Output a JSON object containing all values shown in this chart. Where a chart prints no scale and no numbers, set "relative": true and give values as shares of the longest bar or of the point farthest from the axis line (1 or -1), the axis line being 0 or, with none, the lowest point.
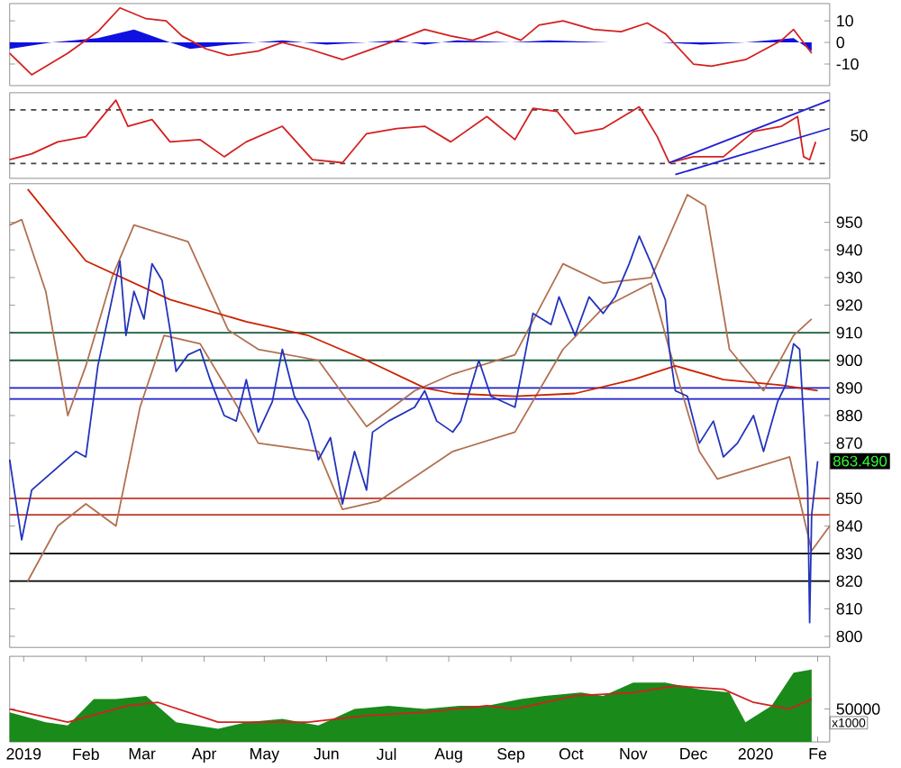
{
  "chart_data": [
    {
      "type": "line",
      "xlim": [
        "2018-12-25",
        "2020-02-07"
      ],
      "ylim": [
        -20,
        18
      ],
      "yticks": [
        10,
        0,
        -10
      ],
      "tick_labels": "y",
      "series": [
        {
          "type": "area",
          "color": "#1010e0",
          "x": [
            "2018-12-25",
            "2019-01-15",
            "2019-02-07",
            "2019-02-25",
            "2019-03-15",
            "2019-03-25",
            "2019-04-13",
            "2019-05-10",
            "2019-06-01",
            "2019-06-21",
            "2019-07-06",
            "2019-07-20",
            "2019-08-05",
            "2019-09-01",
            "2019-09-20",
            "2019-10-20",
            "2019-11-15",
            "2019-12-05",
            "2019-12-27",
            "2020-01-20",
            "2020-01-29"
          ],
          "values": [
            -3,
            0,
            2,
            6,
            0,
            -3,
            -1,
            1,
            -1,
            0,
            1,
            -1,
            1,
            0,
            1,
            0,
            0,
            -1,
            0,
            2,
            -4
          ]
        },
        {
          "type": "line",
          "color": "#d42020",
          "x": [
            "2018-12-25",
            "2019-01-05",
            "2019-01-23",
            "2019-02-07",
            "2019-02-18",
            "2019-03-03",
            "2019-03-13",
            "2019-03-21",
            "2019-04-02",
            "2019-04-13",
            "2019-04-28",
            "2019-05-10",
            "2019-05-23",
            "2019-06-09",
            "2019-06-21",
            "2019-07-06",
            "2019-07-20",
            "2019-08-02",
            "2019-08-13",
            "2019-08-25",
            "2019-09-06",
            "2019-09-15",
            "2019-09-27",
            "2019-10-12",
            "2019-10-26",
            "2019-11-08",
            "2019-11-17",
            "2019-12-01",
            "2019-12-10",
            "2019-12-27",
            "2020-01-14",
            "2020-01-20",
            "2020-01-29"
          ],
          "values": [
            -5,
            -15,
            -5,
            5,
            16,
            11,
            10,
            3,
            -3,
            -6,
            -4,
            0,
            -3,
            -8,
            -4,
            1,
            6,
            3,
            1,
            5,
            1,
            8,
            10,
            6,
            5,
            9,
            4,
            -10,
            -11,
            -8,
            1,
            6,
            -5
          ]
        }
      ]
    },
    {
      "type": "line",
      "xlim": [
        "2018-12-25",
        "2020-02-07"
      ],
      "relative": true,
      "tick_labels": false,
      "annotations": [
        "50"
      ],
      "ref_lines": [
        {
          "axis": "y",
          "value": 0.87,
          "color": "#444444",
          "line_style": "dashed"
        },
        {
          "axis": "y",
          "value": 0.15,
          "color": "#444444",
          "line_style": "dashed"
        }
      ],
      "series": [
        {
          "color": "#d42020",
          "x": [
            "2018-12-25",
            "2019-01-05",
            "2019-01-18",
            "2019-02-01",
            "2019-02-16",
            "2019-02-22",
            "2019-03-06",
            "2019-03-15",
            "2019-03-30",
            "2019-04-11",
            "2019-04-22",
            "2019-05-10",
            "2019-05-25",
            "2019-06-09",
            "2019-06-21",
            "2019-07-06",
            "2019-07-20",
            "2019-08-02",
            "2019-08-20",
            "2019-09-03",
            "2019-09-12",
            "2019-09-24",
            "2019-10-03",
            "2019-10-17",
            "2019-11-04",
            "2019-11-13",
            "2019-11-19",
            "2019-12-01",
            "2019-12-16",
            "2019-12-31",
            "2020-01-14",
            "2020-01-22",
            "2020-01-25",
            "2020-01-28",
            "2020-01-31"
          ],
          "values": [
            0.2,
            0.28,
            0.44,
            0.51,
            1,
            0.65,
            0.74,
            0.44,
            0.47,
            0.24,
            0.44,
            0.65,
            0.2,
            0.16,
            0.55,
            0.62,
            0.65,
            0.44,
            0.78,
            0.47,
            0.89,
            0.85,
            0.55,
            0.62,
            0.91,
            0.51,
            0.16,
            0.24,
            0.24,
            0.58,
            0.65,
            0.78,
            0.24,
            0.2,
            0.44
          ]
        },
        {
          "color": "#2020d0",
          "x": [
            "2019-11-22",
            "2020-02-07"
          ],
          "values": [
            0,
            0.62
          ]
        },
        {
          "color": "#2020d0",
          "x": [
            "2019-11-19",
            "2020-02-07"
          ],
          "values": [
            0.16,
            1
          ]
        }
      ]
    },
    {
      "type": "line",
      "xlim": [
        "2018-12-25",
        "2020-02-07"
      ],
      "ylim": [
        796,
        964
      ],
      "yticks": [
        800,
        810,
        820,
        830,
        840,
        850,
        870,
        880,
        890,
        900,
        910,
        920,
        930,
        940,
        950
      ],
      "tick_labels": "y",
      "ref_lines": [
        {
          "axis": "y",
          "value": 910,
          "color": "#1a5c3a"
        },
        {
          "axis": "y",
          "value": 900,
          "color": "#1a5c3a"
        },
        {
          "axis": "y",
          "value": 890,
          "color": "#1f1fd0"
        },
        {
          "axis": "y",
          "value": 886,
          "color": "#1f1fd0"
        },
        {
          "axis": "y",
          "value": 850,
          "color": "#c0392b"
        },
        {
          "axis": "y",
          "value": 844,
          "color": "#c0392b"
        },
        {
          "axis": "y",
          "value": 830,
          "color": "#000000"
        },
        {
          "axis": "y",
          "value": 820,
          "color": "#000000"
        }
      ],
      "series": [
        {
          "color": "#b07050",
          "x": [
            "2018-12-25",
            "2018-12-31",
            "2019-01-12",
            "2019-01-23",
            "2019-02-01",
            "2019-02-14",
            "2019-02-25",
            "2019-03-24",
            "2019-04-13",
            "2019-04-28",
            "2019-05-28",
            "2019-06-21",
            "2019-07-15",
            "2019-08-03",
            "2019-09-03",
            "2019-09-27",
            "2019-10-17",
            "2019-11-10",
            "2019-11-28",
            "2019-12-07",
            "2019-12-19",
            "2020-01-05",
            "2020-01-20",
            "2020-01-29"
          ],
          "values": [
            949,
            951,
            925,
            880,
            898,
            930,
            949,
            943,
            911,
            904,
            900,
            876,
            889,
            895,
            902,
            935,
            928,
            930,
            960,
            956,
            904,
            889,
            909,
            915
          ]
        },
        {
          "color": "#b07050",
          "x": [
            "2019-01-03",
            "2019-01-18",
            "2019-02-01",
            "2019-02-16",
            "2019-02-28",
            "2019-03-12",
            "2019-03-30",
            "2019-04-13",
            "2019-04-28",
            "2019-05-28",
            "2019-06-09",
            "2019-06-27",
            "2019-08-03",
            "2019-09-03",
            "2019-09-27",
            "2019-10-17",
            "2019-11-10",
            "2019-11-19",
            "2019-12-04",
            "2019-12-13",
            "2019-12-31",
            "2020-01-18",
            "2020-01-29",
            "2020-02-07"
          ],
          "values": [
            820,
            840,
            848,
            840,
            883,
            909,
            906,
            889,
            870,
            867,
            846,
            849,
            867,
            874,
            904,
            919,
            928,
            904,
            867,
            857,
            861,
            865,
            831,
            840
          ]
        },
        {
          "color": "#cc2200",
          "x": [
            "2019-01-03",
            "2019-02-01",
            "2019-03-15",
            "2019-04-22",
            "2019-05-23",
            "2019-06-21",
            "2019-07-20",
            "2019-08-03",
            "2019-09-03",
            "2019-10-03",
            "2019-11-01",
            "2019-11-22",
            "2019-12-16",
            "2020-01-14",
            "2020-02-01"
          ],
          "values": [
            962,
            936,
            922,
            914,
            909,
            900,
            890,
            888,
            887,
            888,
            893,
            898,
            893,
            891,
            889
          ]
        },
        {
          "color": "#2233bb",
          "x": [
            "2018-12-25",
            "2018-12-31",
            "2019-01-05",
            "2019-01-27",
            "2019-02-01",
            "2019-02-07",
            "2019-02-14",
            "2019-02-18",
            "2019-02-21",
            "2019-02-25",
            "2019-03-02",
            "2019-03-06",
            "2019-03-11",
            "2019-03-15",
            "2019-03-18",
            "2019-03-24",
            "2019-03-30",
            "2019-04-04",
            "2019-04-11",
            "2019-04-17",
            "2019-04-22",
            "2019-04-28",
            "2019-05-05",
            "2019-05-10",
            "2019-05-16",
            "2019-05-23",
            "2019-05-28",
            "2019-06-03",
            "2019-06-09",
            "2019-06-15",
            "2019-06-21",
            "2019-06-24",
            "2019-07-02",
            "2019-07-15",
            "2019-07-20",
            "2019-07-26",
            "2019-08-03",
            "2019-08-07",
            "2019-08-16",
            "2019-08-22",
            "2019-09-03",
            "2019-09-12",
            "2019-09-21",
            "2019-09-25",
            "2019-10-03",
            "2019-10-10",
            "2019-10-17",
            "2019-10-23",
            "2019-10-30",
            "2019-11-04",
            "2019-11-10",
            "2019-11-17",
            "2019-11-19",
            "2019-11-22",
            "2019-11-28",
            "2019-12-04",
            "2019-12-11",
            "2019-12-16",
            "2019-12-23",
            "2019-12-31",
            "2020-01-05",
            "2020-01-12",
            "2020-01-16",
            "2020-01-20",
            "2020-01-23",
            "2020-01-27",
            "2020-01-28",
            "2020-01-29",
            "2020-02-01"
          ],
          "values": [
            864,
            835,
            853,
            867,
            865,
            898,
            922,
            936,
            909,
            925,
            915,
            935,
            929,
            911,
            896,
            902,
            904,
            893,
            880,
            878,
            893,
            874,
            885,
            904,
            887,
            878,
            864,
            872,
            848,
            867,
            853,
            874,
            878,
            883,
            889,
            878,
            874,
            878,
            900,
            887,
            883,
            917,
            913,
            923,
            909,
            923,
            917,
            923,
            935,
            945,
            935,
            922,
            904,
            889,
            887,
            870,
            878,
            865,
            870,
            880,
            867,
            885,
            891,
            906,
            904,
            854,
            805,
            844,
            863.49
          ],
          "value_labels": [
            null,
            null,
            null,
            null,
            null,
            null,
            null,
            null,
            null,
            null,
            null,
            null,
            null,
            null,
            null,
            null,
            null,
            null,
            null,
            null,
            null,
            null,
            null,
            null,
            null,
            null,
            null,
            null,
            null,
            null,
            null,
            null,
            null,
            null,
            null,
            null,
            null,
            null,
            null,
            null,
            null,
            null,
            null,
            null,
            null,
            null,
            null,
            null,
            null,
            null,
            null,
            null,
            null,
            null,
            null,
            null,
            null,
            null,
            null,
            null,
            null,
            null,
            null,
            null,
            null,
            null,
            null,
            null,
            "863.490"
          ]
        }
      ]
    },
    {
      "type": "line",
      "xlim": [
        "2018-12-25",
        "2020-02-07"
      ],
      "ylim": [
        0,
        130000
      ],
      "yticks": [
        50000
      ],
      "xticks": [
        {
          "value": "2019-01-01",
          "label": "2019"
        },
        {
          "value": "2019-02-01",
          "label": "Feb"
        },
        {
          "value": "2019-03-01",
          "label": "Mar"
        },
        {
          "value": "2019-04-01",
          "label": "Apr"
        },
        {
          "value": "2019-05-01",
          "label": "May"
        },
        {
          "value": "2019-06-01",
          "label": "Jun"
        },
        {
          "value": "2019-07-01",
          "label": "Jul"
        },
        {
          "value": "2019-08-01",
          "label": "Aug"
        },
        {
          "value": "2019-09-01",
          "label": "Sep"
        },
        {
          "value": "2019-10-01",
          "label": "Oct"
        },
        {
          "value": "2019-11-01",
          "label": "Nov"
        },
        {
          "value": "2019-12-01",
          "label": "Dec"
        },
        {
          "value": "2020-01-01",
          "label": "2020"
        },
        {
          "value": "2020-02-01",
          "label": "Fe"
        }
      ],
      "annotations": [
        "x1000"
      ],
      "series": [
        {
          "type": "area",
          "color": "#1a8a1a",
          "x": [
            "2018-12-25",
            "2019-01-12",
            "2019-01-23",
            "2019-02-05",
            "2019-02-16",
            "2019-03-03",
            "2019-03-18",
            "2019-04-08",
            "2019-04-22",
            "2019-05-10",
            "2019-05-28",
            "2019-06-15",
            "2019-07-02",
            "2019-07-20",
            "2019-08-07",
            "2019-08-20",
            "2019-09-06",
            "2019-09-18",
            "2019-10-06",
            "2019-10-17",
            "2019-11-01",
            "2019-11-17",
            "2019-12-04",
            "2019-12-19",
            "2019-12-27",
            "2020-01-09",
            "2020-01-20",
            "2020-01-29"
          ],
          "values": [
            45000,
            30000,
            25000,
            65000,
            65000,
            70000,
            30000,
            20000,
            30000,
            35000,
            25000,
            50000,
            55000,
            50000,
            55000,
            55000,
            65000,
            70000,
            75000,
            70000,
            90000,
            90000,
            80000,
            75000,
            30000,
            55000,
            105000,
            110000
          ]
        },
        {
          "color": "#d42020",
          "x": [
            "2018-12-25",
            "2019-01-23",
            "2019-02-22",
            "2019-03-09",
            "2019-04-08",
            "2019-05-23",
            "2019-06-21",
            "2019-07-20",
            "2019-08-20",
            "2019-09-03",
            "2019-10-03",
            "2019-11-01",
            "2019-11-22",
            "2019-12-16",
            "2019-12-31",
            "2020-01-18",
            "2020-01-29"
          ],
          "values": [
            50000,
            30000,
            55000,
            60000,
            30000,
            30000,
            40000,
            45000,
            55000,
            50000,
            70000,
            75000,
            85000,
            80000,
            60000,
            50000,
            65000
          ]
        }
      ]
    }
  ]
}
